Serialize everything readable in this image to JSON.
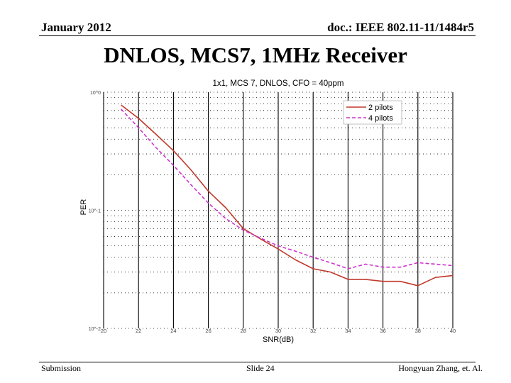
{
  "header": {
    "date": "January 2012",
    "doc": "doc.: IEEE 802.11-11/1484r5"
  },
  "slide_title": "DNLOS, MCS7, 1MHz Receiver",
  "footer": {
    "left": "Submission",
    "center": "Slide 24",
    "right": "Hongyuan Zhang, et. Al."
  },
  "chart_data": {
    "type": "line",
    "title": "1x1, MCS 7, DNLOS, CFO = 40ppm",
    "xlabel": "SNR(dB)",
    "ylabel": "PER",
    "xlim": [
      20,
      40
    ],
    "ylim": [
      0.01,
      1
    ],
    "yscale": "log",
    "x_ticks": [
      20,
      22,
      24,
      26,
      28,
      30,
      32,
      34,
      36,
      38,
      40
    ],
    "y_ticks": [
      0.01,
      0.1,
      1
    ],
    "y_tick_labels": [
      "10^-2",
      "10^-1",
      "10^0"
    ],
    "grid": true,
    "legend_position": "top-right",
    "series": [
      {
        "name": "2 pilots",
        "color": "#c0392b",
        "style": "solid",
        "points": [
          [
            21,
            0.78
          ],
          [
            22,
            0.6
          ],
          [
            23,
            0.44
          ],
          [
            24,
            0.32
          ],
          [
            25,
            0.22
          ],
          [
            26,
            0.145
          ],
          [
            27,
            0.105
          ],
          [
            28,
            0.07
          ],
          [
            29,
            0.057
          ],
          [
            30,
            0.047
          ],
          [
            31,
            0.038
          ],
          [
            32,
            0.032
          ],
          [
            33,
            0.03
          ],
          [
            34,
            0.026
          ],
          [
            35,
            0.026
          ],
          [
            36,
            0.025
          ],
          [
            37,
            0.025
          ],
          [
            38,
            0.023
          ],
          [
            39,
            0.027
          ],
          [
            40,
            0.028
          ]
        ]
      },
      {
        "name": "4 pilots",
        "color": "#cc33cc",
        "style": "dashed",
        "points": [
          [
            21,
            0.72
          ],
          [
            22,
            0.5
          ],
          [
            23,
            0.34
          ],
          [
            24,
            0.24
          ],
          [
            25,
            0.165
          ],
          [
            26,
            0.115
          ],
          [
            27,
            0.085
          ],
          [
            28,
            0.068
          ],
          [
            29,
            0.058
          ],
          [
            30,
            0.05
          ],
          [
            31,
            0.045
          ],
          [
            32,
            0.04
          ],
          [
            33,
            0.036
          ],
          [
            34,
            0.032
          ],
          [
            35,
            0.035
          ],
          [
            36,
            0.033
          ],
          [
            37,
            0.033
          ],
          [
            38,
            0.036
          ],
          [
            39,
            0.035
          ],
          [
            40,
            0.034
          ]
        ]
      }
    ]
  }
}
